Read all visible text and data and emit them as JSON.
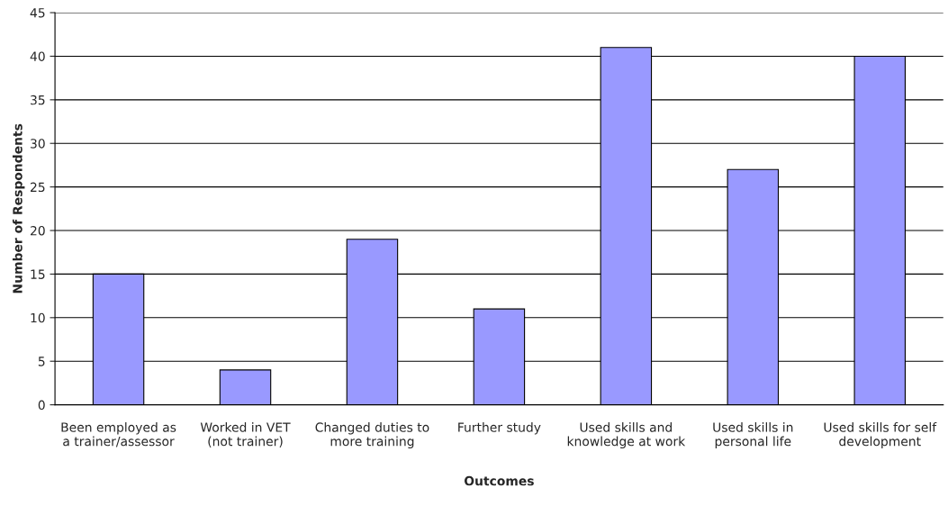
{
  "chart_data": {
    "type": "bar",
    "xlabel": "Outcomes",
    "ylabel": "Number of Respondents",
    "categories": [
      "Been employed as\na trainer/assessor",
      "Worked in VET\n(not trainer)",
      "Changed duties to\nmore training",
      "Further study",
      "Used skills and\nknowledge at work",
      "Used skills in\npersonal life",
      "Used skills for self\ndevelopment"
    ],
    "values": [
      15,
      4,
      19,
      11,
      41,
      27,
      40
    ],
    "color": "#9999ff",
    "ylim": [
      0,
      45
    ],
    "yticks": [
      0,
      5,
      10,
      15,
      20,
      25,
      30,
      35,
      40,
      45
    ],
    "grid": "y",
    "legend": false
  }
}
